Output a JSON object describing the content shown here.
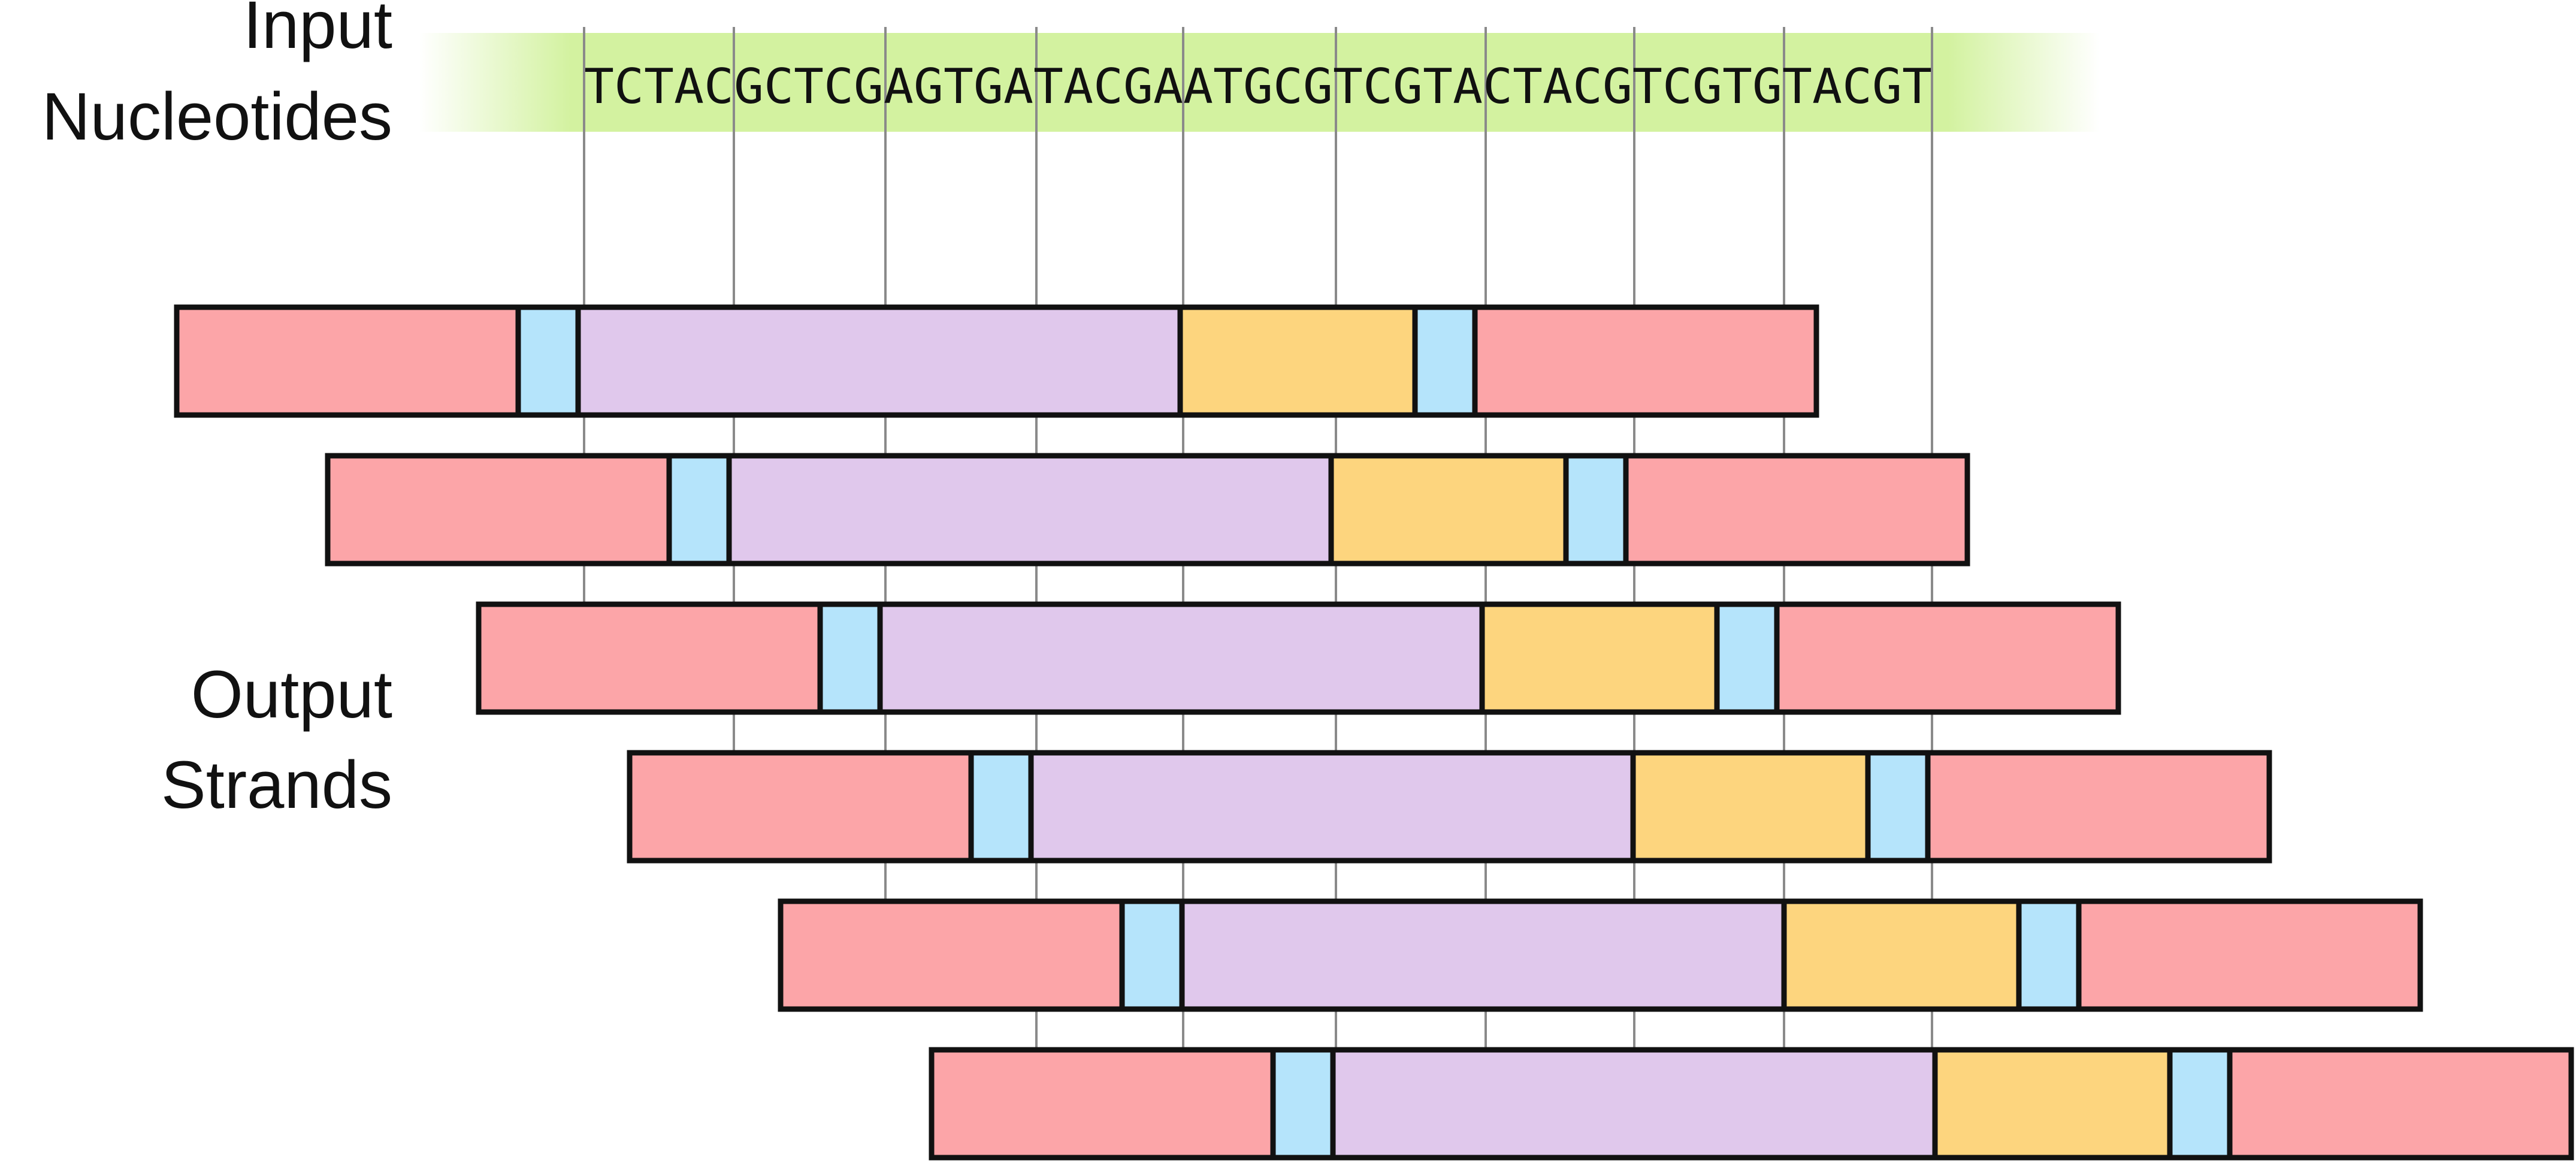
{
  "input_label": {
    "line1": "Input",
    "line2": "Nucleotides"
  },
  "output_label": {
    "line1": "Output",
    "line2": "Strands"
  },
  "sequence": "TCTACGCTCGAGTGATACGAATGCGTCGTACTACGTCGTGTACGT",
  "colors": {
    "band": "#d3f2a0",
    "outer": "#fca5a8",
    "spacer": "#b5e4fb",
    "payload": "#e0c8ec",
    "index": "#fdd57e",
    "outline": "#111111",
    "guide": "#8a8a8a"
  },
  "strand_count": 6,
  "strand_segments": [
    "outer",
    "spacer",
    "payload",
    "index",
    "spacer",
    "outer"
  ]
}
